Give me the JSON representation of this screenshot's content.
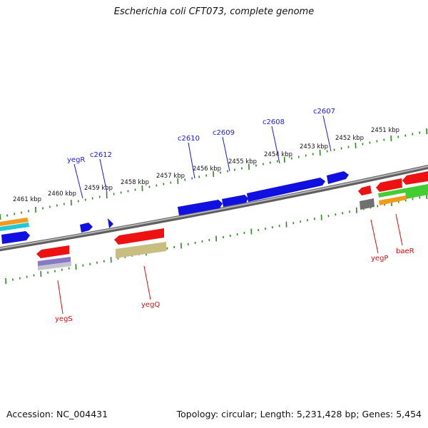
{
  "title": "Escherichia coli CFT073, complete genome",
  "footer": {
    "accession": "Accession: NC_004431",
    "summary": "Topology: circular; Length: 5,231,428 bp; Genes: 5,454"
  },
  "colors": {
    "backbone": "#8c8c8c",
    "tick": "#2a8a1f",
    "label_top": "#1a1adb",
    "label_bottom": "#cc1111",
    "blue": "#1010e0",
    "red": "#ee1111",
    "olive": "#c8be82",
    "lavender": "#8878c8",
    "green": "#44cc33",
    "orange": "#f39a1c",
    "cyan": "#22c8d8",
    "gray": "#707070"
  },
  "scale_labels": [
    "2461 kbp",
    "2460 kbp",
    "2459 kbp",
    "2458 kbp",
    "2457 kbp",
    "2456 kbp",
    "2455 kbp",
    "2454 kbp",
    "2453 kbp",
    "2452 kbp",
    "2451 kbp"
  ],
  "top_gene_labels": [
    "yegR",
    "c2612",
    "c2610",
    "c2609",
    "c2608",
    "c2607"
  ],
  "bottom_gene_labels": [
    "yegS",
    "yegQ",
    "yegP",
    "baeR"
  ]
}
